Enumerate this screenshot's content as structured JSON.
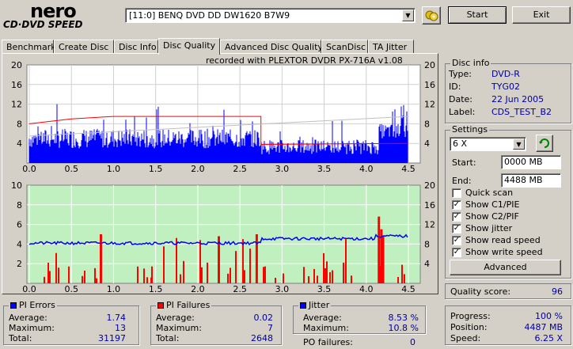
{
  "logo": {
    "line1": "nero",
    "line2": "CD·DVD SPEED"
  },
  "drive": {
    "selected": "[11:0]  BENQ DVD DD DW1620 B7W9"
  },
  "buttons": {
    "start": "Start",
    "exit": "Exit",
    "advanced": "Advanced"
  },
  "tabs": [
    "Benchmark",
    "Create Disc",
    "Disc Info",
    "Disc Quality",
    "Advanced Disc Quality",
    "ScanDisc",
    "TA Jitter"
  ],
  "active_tab": "Disc Quality",
  "recorded_with": "recorded with PLEXTOR DVDR   PX-716A   v1.08",
  "disc_info": {
    "title": "Disc info",
    "type_label": "Type:",
    "type": "DVD-R",
    "id_label": "ID:",
    "id": "TYG02",
    "date_label": "Date:",
    "date": "22 Jun 2005",
    "label_label": "Label:",
    "label": "CDS_TEST_B2"
  },
  "settings": {
    "title": "Settings",
    "speed": "6 X",
    "start_label": "Start:",
    "start": "0000 MB",
    "end_label": "End:",
    "end": "4488 MB",
    "options": [
      {
        "label": "Quick scan",
        "checked": false
      },
      {
        "label": "Show C1/PIE",
        "checked": true
      },
      {
        "label": "Show C2/PIF",
        "checked": true
      },
      {
        "label": "Show jitter",
        "checked": true
      },
      {
        "label": "Show read speed",
        "checked": true
      },
      {
        "label": "Show write speed",
        "checked": true
      }
    ]
  },
  "quality": {
    "label": "Quality score:",
    "value": "96"
  },
  "progress": {
    "progress_label": "Progress:",
    "progress": "100 %",
    "position_label": "Position:",
    "position": "4487 MB",
    "speed_label": "Speed:",
    "speed": "6.25 X"
  },
  "pi_errors": {
    "title": "PI Errors",
    "avg_label": "Average:",
    "avg": "1.74",
    "max_label": "Maximum:",
    "max": "13",
    "total_label": "Total:",
    "total": "31197",
    "color": "#0000ff"
  },
  "pi_failures": {
    "title": "PI Failures",
    "avg_label": "Average:",
    "avg": "0.02",
    "max_label": "Maximum:",
    "max": "7",
    "total_label": "Total:",
    "total": "2648",
    "color": "#ff0000"
  },
  "jitter": {
    "title": "Jitter",
    "avg_label": "Average:",
    "avg": "8.53 %",
    "max_label": "Maximum:",
    "max": "10.8 %",
    "po_label": "PO failures:",
    "po": "0",
    "color": "#0000ff"
  },
  "chart_data": [
    {
      "type": "bar",
      "name": "PI Errors",
      "x_ticks": [
        "0.0",
        "0.5",
        "1.0",
        "1.5",
        "2.0",
        "2.5",
        "3.0",
        "3.5",
        "4.0",
        "4.5"
      ],
      "y_left_ticks": [
        "20",
        "16",
        "12",
        "8",
        "4"
      ],
      "y_right_ticks": [
        "20",
        "16",
        "12",
        "8",
        "4"
      ],
      "xlim": [
        0,
        4.5
      ],
      "ylim": [
        0,
        20
      ],
      "series_color": "#0000ff",
      "read_speed_color": "#ff0000",
      "write_speed_color": "#c0c0c0",
      "max": 13,
      "average": 1.74
    },
    {
      "type": "bar",
      "name": "PI Failures / Jitter",
      "x_ticks": [
        "0.0",
        "0.5",
        "1.0",
        "1.5",
        "2.0",
        "2.5",
        "3.0",
        "3.5",
        "4.0",
        "4.5"
      ],
      "y_left_ticks": [
        "10",
        "8",
        "6",
        "4",
        "2"
      ],
      "y_right_ticks": [
        "20",
        "16",
        "12",
        "8",
        "4"
      ],
      "xlim": [
        0,
        4.5
      ],
      "ylim": [
        0,
        10
      ],
      "pif_color": "#ff0000",
      "jitter_color": "#0000ff",
      "background": "#c0f0c0"
    }
  ]
}
